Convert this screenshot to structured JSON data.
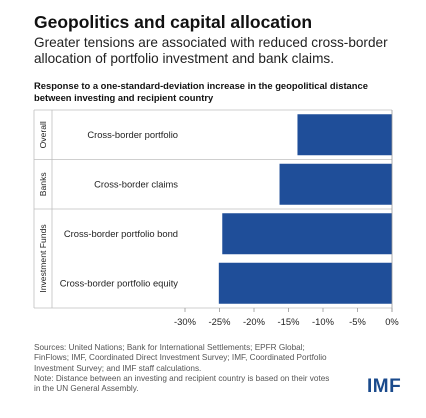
{
  "title": "Geopolitics and capital allocation",
  "subtitle": "Greater tensions are associated with reduced cross-border allocation of portfolio investment and bank claims.",
  "footnote": "Sources: United Nations; Bank for International Settlements; EPFR Global; FinFlows; IMF, Coordinated Direct Investment Survey; IMF, Coordinated Portfolio Investment Survey; and IMF staff calculations.\nNote: Distance between an investing and recipient country is based on their votes in the UN General Assembly.",
  "logo": "IMF",
  "colors": {
    "bar": "#1f4e99",
    "grid": "#cfcfcf",
    "text": "#222222"
  },
  "chart_data": {
    "type": "bar",
    "orientation": "horizontal",
    "title": "Response to a one-standard-deviation increase in the geopolitical distance between investing and recipient country",
    "groups": [
      {
        "name": "Overall",
        "categories": [
          "Cross-border portfolio"
        ]
      },
      {
        "name": "Banks",
        "categories": [
          "Cross-border claims"
        ]
      },
      {
        "name": "Investment Funds",
        "categories": [
          "Cross-border portfolio bond",
          "Cross-border portfolio equity"
        ]
      }
    ],
    "categories": [
      "Cross-border portfolio",
      "Cross-border claims",
      "Cross-border portfolio bond",
      "Cross-border portfolio equity"
    ],
    "values": [
      -13.7,
      -16.3,
      -24.6,
      -25.1
    ],
    "xlim": [
      -30,
      0
    ],
    "xticks": [
      -30,
      -25,
      -20,
      -15,
      -10,
      -5,
      0
    ],
    "xtick_labels": [
      "-30%",
      "-25%",
      "-20%",
      "-15%",
      "-10%",
      "-5%",
      "0%"
    ],
    "grid": false
  }
}
